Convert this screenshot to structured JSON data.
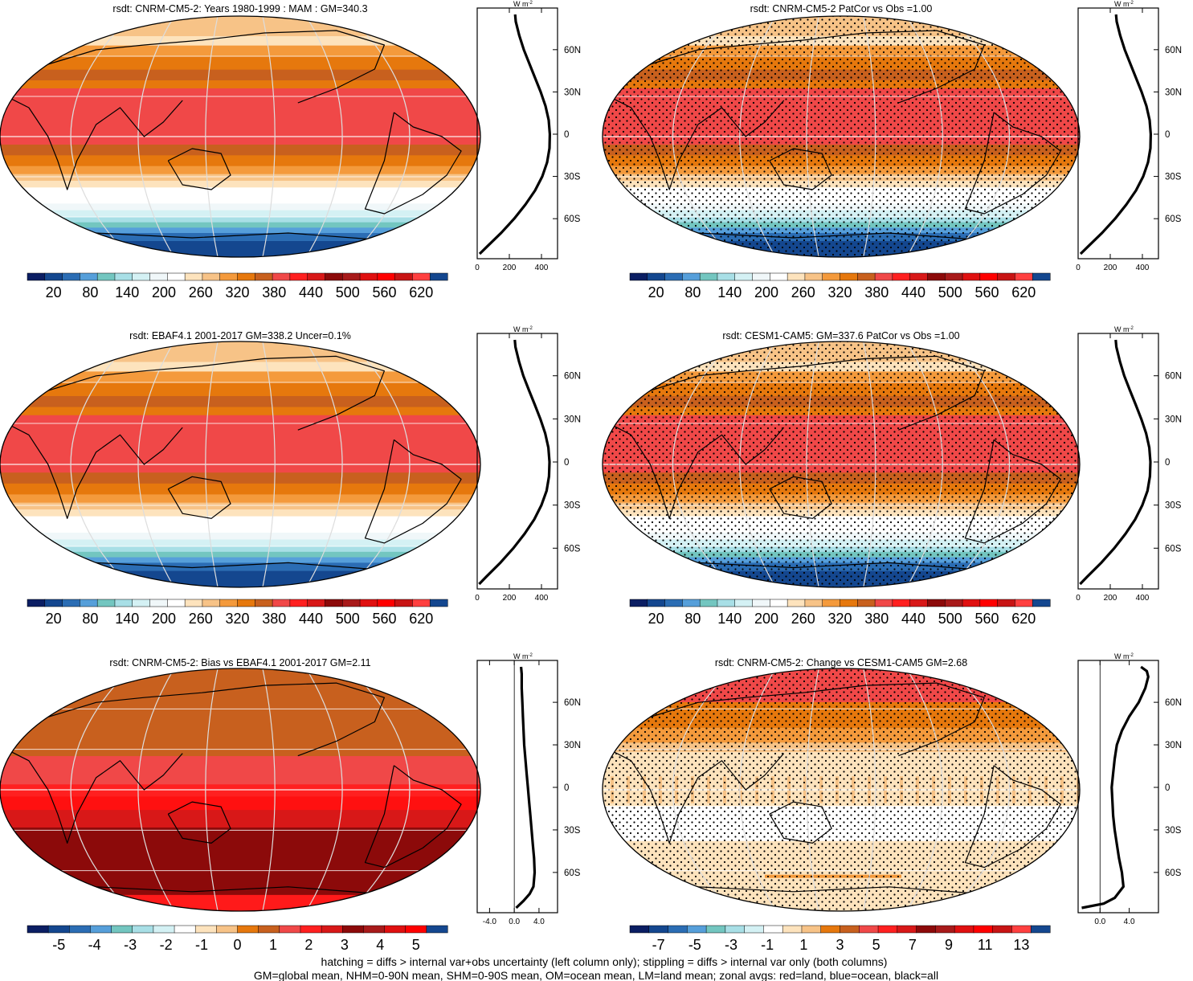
{
  "palettes": {
    "full": [
      "#0b1e63",
      "#14478f",
      "#2b6db4",
      "#569fda",
      "#73c6c0",
      "#a8dfe6",
      "#d4f1f4",
      "#f0f7f9",
      "#ffffff",
      "#fde3bd",
      "#f7c387",
      "#f49a3c",
      "#e6780d",
      "#c8601e",
      "#f04848",
      "#ff2020",
      "#d81818",
      "#8c0a0a",
      "#a81a1a",
      "#e01010",
      "#ff0000",
      "#c81414",
      "#ff4040",
      "#14478f"
    ],
    "bias": [
      "#0b1e63",
      "#14478f",
      "#2b6db4",
      "#569fda",
      "#73c6c0",
      "#a8dfe6",
      "#d4f1f4",
      "#ffffff",
      "#fde3bd",
      "#f7c387",
      "#e6780d",
      "#c8601e",
      "#f04848",
      "#ff2020",
      "#d81818",
      "#8c0a0a",
      "#a81a1a",
      "#e01010",
      "#ff0000",
      "#14478f"
    ],
    "change": [
      "#0b1e63",
      "#14478f",
      "#2b6db4",
      "#569fda",
      "#73c6c0",
      "#a8dfe6",
      "#d4f1f4",
      "#ffffff",
      "#fde3bd",
      "#f7c387",
      "#e6780d",
      "#c8601e",
      "#f04848",
      "#ff2020",
      "#d81818",
      "#8c0a0a",
      "#a81a1a",
      "#e01010",
      "#ff0000",
      "#c81414",
      "#ff4040",
      "#14478f"
    ]
  },
  "chart_data": [
    {
      "type": "heatmap",
      "title": "rsdt: CNRM-CM5-2: Years 1980-1999 : MAM : GM=340.3",
      "colorbar_ticks": [
        "20",
        "80",
        "140",
        "200",
        "260",
        "320",
        "380",
        "440",
        "500",
        "560",
        "620"
      ],
      "colorbar_palette": "full",
      "zonal_profile": {
        "units": "W m-2",
        "x_ticks": [
          "0",
          "200",
          "400"
        ],
        "xlim": [
          0,
          500
        ],
        "lat": [
          -85,
          -80,
          -70,
          -60,
          -50,
          -40,
          -30,
          -20,
          -10,
          0,
          10,
          20,
          30,
          40,
          50,
          60,
          70,
          80,
          85
        ],
        "values": [
          15,
          60,
          150,
          230,
          300,
          360,
          405,
          435,
          450,
          452,
          445,
          425,
          395,
          360,
          325,
          290,
          262,
          240,
          236
        ]
      },
      "lat_labels": [
        "60N",
        "30N",
        "0",
        "30S",
        "60S"
      ]
    },
    {
      "type": "heatmap",
      "title": "rsdt: CNRM-CM5-2 PatCor vs Obs =1.00",
      "colorbar_ticks": [
        "20",
        "80",
        "140",
        "200",
        "260",
        "320",
        "380",
        "440",
        "500",
        "560",
        "620"
      ],
      "colorbar_palette": "full",
      "zonal_profile": {
        "units": "W m-2",
        "x_ticks": [
          "0",
          "200",
          "400"
        ],
        "xlim": [
          0,
          500
        ],
        "lat": [
          -85,
          -80,
          -70,
          -60,
          -50,
          -40,
          -30,
          -20,
          -10,
          0,
          10,
          20,
          30,
          40,
          50,
          60,
          70,
          80,
          85
        ],
        "values": [
          15,
          60,
          150,
          230,
          300,
          360,
          405,
          435,
          450,
          452,
          445,
          425,
          395,
          360,
          325,
          290,
          262,
          240,
          236
        ]
      },
      "lat_labels": [
        "60N",
        "30N",
        "0",
        "30S",
        "60S"
      ]
    },
    {
      "type": "heatmap",
      "title": "rsdt: EBAF4.1 2001-2017 GM=338.2 Uncer=0.1%",
      "colorbar_ticks": [
        "20",
        "80",
        "140",
        "200",
        "260",
        "320",
        "380",
        "440",
        "500",
        "560",
        "620"
      ],
      "colorbar_palette": "full",
      "zonal_profile": {
        "units": "W m-2",
        "x_ticks": [
          "0",
          "200",
          "400"
        ],
        "xlim": [
          0,
          500
        ],
        "lat": [
          -85,
          -80,
          -70,
          -60,
          -50,
          -40,
          -30,
          -20,
          -10,
          0,
          10,
          20,
          30,
          40,
          50,
          60,
          70,
          80,
          85
        ],
        "values": [
          12,
          55,
          145,
          225,
          295,
          355,
          400,
          432,
          447,
          450,
          443,
          423,
          393,
          358,
          322,
          287,
          260,
          238,
          234
        ]
      },
      "lat_labels": [
        "60N",
        "30N",
        "0",
        "30S",
        "60S"
      ]
    },
    {
      "type": "heatmap",
      "title": "rsdt: CESM1-CAM5: GM=337.6 PatCor vs Obs =1.00",
      "colorbar_ticks": [
        "20",
        "80",
        "140",
        "200",
        "260",
        "320",
        "380",
        "440",
        "500",
        "560",
        "620"
      ],
      "colorbar_palette": "full",
      "zonal_profile": {
        "units": "W m-2",
        "x_ticks": [
          "0",
          "200",
          "400"
        ],
        "xlim": [
          0,
          500
        ],
        "lat": [
          -85,
          -80,
          -70,
          -60,
          -50,
          -40,
          -30,
          -20,
          -10,
          0,
          10,
          20,
          30,
          40,
          50,
          60,
          70,
          80,
          85
        ],
        "values": [
          12,
          55,
          145,
          225,
          295,
          355,
          400,
          432,
          447,
          450,
          443,
          423,
          393,
          358,
          322,
          287,
          260,
          238,
          234
        ]
      },
      "lat_labels": [
        "60N",
        "30N",
        "0",
        "30S",
        "60S"
      ]
    },
    {
      "type": "heatmap",
      "title": "rsdt: CNRM-CM5-2: Bias vs EBAF4.1 2001-2017 GM=2.11",
      "colorbar_ticks": [
        "-5",
        "-4",
        "-3",
        "-2",
        "-1",
        "0",
        "1",
        "2",
        "3",
        "4",
        "5"
      ],
      "colorbar_palette": "bias",
      "zonal_profile": {
        "units": "W m-2",
        "x_ticks": [
          "-4.0",
          "0.0",
          "4.0"
        ],
        "xlim": [
          -6,
          7
        ],
        "lat": [
          -85,
          -80,
          -75,
          -70,
          -60,
          -50,
          -40,
          -30,
          -20,
          -10,
          0,
          10,
          20,
          30,
          40,
          50,
          60,
          70,
          80,
          85
        ],
        "values": [
          0.3,
          1.5,
          2.5,
          3.1,
          3.3,
          3.2,
          3.0,
          2.8,
          2.6,
          2.4,
          2.2,
          2.0,
          1.8,
          1.6,
          1.5,
          1.4,
          1.3,
          1.2,
          1.2,
          1.1
        ]
      },
      "lat_labels": [
        "60N",
        "30N",
        "0",
        "30S",
        "60S"
      ]
    },
    {
      "type": "heatmap",
      "title": "rsdt: CNRM-CM5-2: Change vs CESM1-CAM5 GM=2.68",
      "colorbar_ticks": [
        "-7",
        "-5",
        "-3",
        "-1",
        "1",
        "3",
        "5",
        "7",
        "9",
        "11",
        "13"
      ],
      "colorbar_palette": "change",
      "zonal_profile": {
        "units": "W m-2",
        "x_ticks": [
          "0.0",
          "4.0"
        ],
        "xlim": [
          -3,
          8
        ],
        "lat": [
          -85,
          -82,
          -78,
          -70,
          -60,
          -50,
          -40,
          -30,
          -20,
          -10,
          0,
          10,
          20,
          30,
          40,
          50,
          60,
          70,
          78,
          82,
          85
        ],
        "values": [
          -2.5,
          0.5,
          2.0,
          3.2,
          3.0,
          2.6,
          2.3,
          2.0,
          1.8,
          1.7,
          1.6,
          1.8,
          2.0,
          2.3,
          3.0,
          4.0,
          5.3,
          6.2,
          6.6,
          6.4,
          5.6
        ]
      },
      "lat_labels": [
        "60N",
        "30N",
        "0",
        "30S",
        "60S"
      ]
    }
  ],
  "footer": {
    "line1": "hatching = diffs > internal var+obs uncertainty (left column only); stippling = diffs > internal var only (both columns)",
    "line2": "GM=global mean, NHM=0-90N mean, SHM=0-90S mean, OM=ocean mean, LM=land mean; zonal avgs: red=land, blue=ocean, black=all"
  }
}
